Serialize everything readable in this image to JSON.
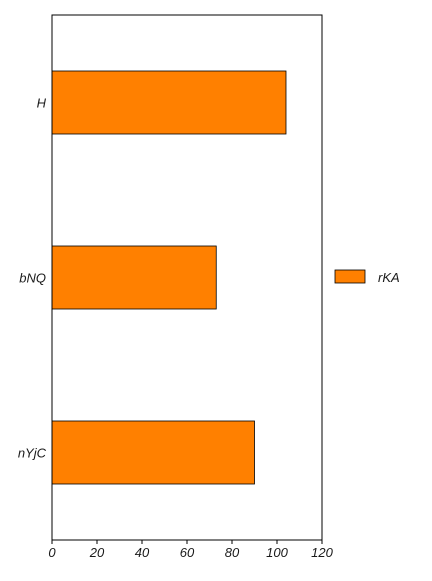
{
  "chart_data": {
    "type": "bar",
    "orientation": "horizontal",
    "categories": [
      "H",
      "bNQ",
      "nYjC"
    ],
    "series": [
      {
        "name": "rKA",
        "values": [
          104,
          73,
          90
        ],
        "color": "#ff8000"
      }
    ],
    "xlim": [
      0,
      120
    ],
    "xticks": [
      "0",
      "20",
      "40",
      "60",
      "80",
      "100",
      "120"
    ],
    "grid": false,
    "legend": {
      "position": "right",
      "entries": [
        "rKA"
      ]
    }
  }
}
